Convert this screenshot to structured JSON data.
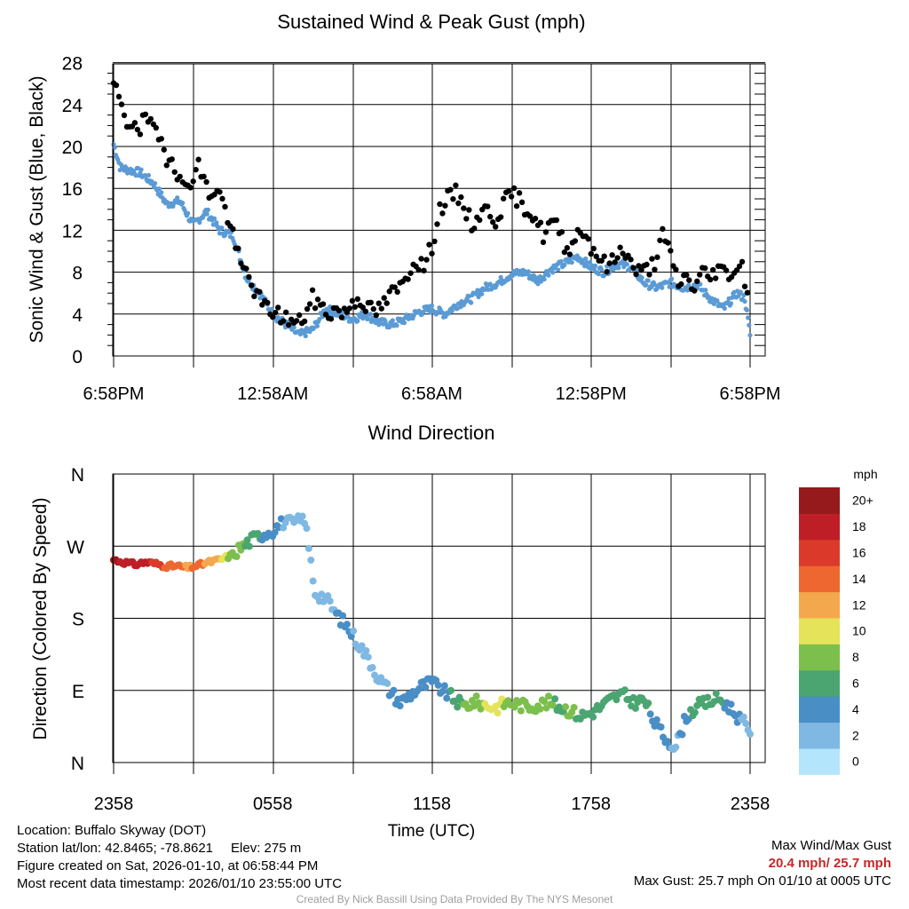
{
  "colors": {
    "wind": "#5b9bd5",
    "gust": "#000000",
    "scale": [
      "#b3e5fc",
      "#7fb8e3",
      "#4a8ec6",
      "#4aa571",
      "#7cbf4c",
      "#e4e35a",
      "#f4a84d",
      "#ef6730",
      "#db3a2b",
      "#be1f26",
      "#96191c"
    ]
  },
  "chart_data": [
    {
      "type": "scatter",
      "title": "Sustained Wind & Peak Gust (mph)",
      "ylabel": "Sonic Wind & Gust (Blue, Black)",
      "xlabel": "",
      "ylim": [
        0,
        29
      ],
      "yticks": [
        0,
        4,
        8,
        12,
        16,
        20,
        24,
        28
      ],
      "xlim_hours": [
        0,
        24
      ],
      "xticks_hours": [
        0,
        6,
        12,
        18,
        24
      ],
      "xtick_labels": [
        "6:58PM",
        "12:58AM",
        "6:58AM",
        "12:58PM",
        "6:58PM"
      ],
      "grid": true,
      "series": [
        {
          "name": "Sustained Wind",
          "color": "#5b9bd5",
          "x_hours": [
            0,
            0.25,
            0.5,
            1.0,
            1.5,
            2.0,
            2.5,
            3.0,
            3.5,
            4.0,
            4.5,
            5.0,
            5.5,
            6.0,
            6.5,
            7.0,
            7.5,
            8.0,
            8.5,
            9.0,
            9.5,
            10.0,
            10.5,
            11.0,
            11.5,
            12.0,
            12.5,
            13.0,
            13.5,
            14.0,
            14.5,
            15.0,
            15.5,
            16.0,
            16.5,
            17.0,
            17.5,
            18.0,
            18.5,
            19.0,
            19.5,
            20.0,
            20.5,
            21.0,
            21.5,
            22.0,
            22.5,
            23.0,
            23.5,
            23.8,
            24.0
          ],
          "values": [
            20.2,
            18.0,
            17.8,
            17.5,
            16.5,
            14.5,
            14.8,
            12.5,
            13.8,
            12.0,
            11.5,
            7.5,
            6.0,
            4.0,
            3.0,
            2.0,
            2.5,
            4.5,
            4.0,
            3.5,
            4.0,
            3.2,
            3.0,
            3.5,
            4.2,
            4.5,
            4.0,
            5.0,
            5.5,
            6.5,
            7.0,
            7.8,
            8.0,
            7.2,
            8.3,
            8.8,
            9.5,
            8.5,
            8.0,
            8.8,
            8.5,
            7.0,
            6.5,
            7.0,
            6.5,
            6.8,
            5.5,
            4.5,
            6.0,
            5.5,
            2.0
          ]
        },
        {
          "name": "Peak Gust",
          "color": "#000000",
          "x_hours": [
            0,
            0.1,
            0.2,
            0.4,
            0.6,
            0.8,
            1.0,
            1.2,
            1.4,
            1.6,
            1.8,
            2.0,
            2.2,
            2.4,
            2.6,
            2.8,
            3.0,
            3.2,
            3.4,
            3.6,
            3.8,
            4.0,
            4.2,
            4.4,
            4.6,
            4.8,
            5.0,
            5.2,
            5.4,
            5.6,
            5.8,
            6.0,
            6.3,
            6.6,
            6.9,
            7.2,
            7.5,
            7.8,
            8.1,
            8.4,
            8.7,
            9.0,
            9.3,
            9.6,
            9.9,
            10.2,
            10.5,
            10.8,
            11.1,
            11.4,
            11.7,
            12.0,
            12.3,
            12.6,
            12.9,
            13.2,
            13.5,
            13.8,
            14.1,
            14.4,
            14.7,
            15.0,
            15.3,
            15.6,
            15.9,
            16.2,
            16.5,
            16.8,
            17.1,
            17.4,
            17.7,
            18.0,
            18.3,
            18.6,
            18.9,
            19.2,
            19.5,
            19.8,
            20.1,
            20.4,
            20.7,
            21.0,
            21.3,
            21.6,
            21.9,
            22.2,
            22.5,
            22.8,
            23.1,
            23.4,
            23.7,
            24.0
          ],
          "values": [
            25.3,
            25.7,
            24.5,
            22.5,
            22.0,
            22.7,
            21.5,
            23.0,
            22.0,
            21.0,
            20.5,
            19.0,
            19.2,
            17.5,
            16.0,
            16.5,
            17.2,
            18.2,
            16.8,
            15.5,
            15.8,
            15.5,
            14.0,
            12.5,
            10.5,
            8.5,
            8.0,
            7.0,
            5.8,
            5.0,
            4.5,
            4.3,
            3.8,
            3.5,
            3.0,
            3.8,
            5.5,
            4.8,
            4.0,
            4.5,
            4.0,
            5.2,
            5.5,
            4.5,
            4.2,
            5.0,
            6.0,
            6.5,
            8.0,
            9.2,
            8.5,
            10.5,
            14.0,
            15.0,
            15.5,
            14.5,
            12.5,
            13.5,
            14.0,
            13.0,
            14.5,
            15.5,
            14.8,
            14.0,
            13.2,
            11.5,
            12.8,
            12.0,
            10.0,
            11.5,
            12.0,
            10.5,
            9.5,
            8.5,
            9.2,
            10.5,
            8.8,
            8.0,
            8.2,
            9.0,
            11.5,
            9.5,
            7.0,
            7.5,
            6.5,
            8.0,
            7.5,
            8.5,
            7.8,
            8.2,
            8.6,
            5.0
          ]
        }
      ]
    },
    {
      "type": "scatter",
      "title": "Wind Direction",
      "ylabel": "Direction (Colored By Speed)",
      "xlabel": "Time (UTC)",
      "ylim_degrees": [
        0,
        360
      ],
      "yticks_degrees": [
        0,
        90,
        180,
        270,
        360
      ],
      "ytick_labels": [
        "N",
        "E",
        "S",
        "W",
        "N"
      ],
      "xlim_hours": [
        0,
        24
      ],
      "xticks_hours": [
        0,
        6,
        12,
        18,
        24
      ],
      "xtick_labels": [
        "2358",
        "0558",
        "1158",
        "1758",
        "2358"
      ],
      "grid": true,
      "colorbar": {
        "title": "mph",
        "labels": [
          "0",
          "2",
          "4",
          "6",
          "8",
          "10",
          "12",
          "14",
          "16",
          "18",
          "20+"
        ]
      },
      "x_hours": [
        0,
        0.4,
        0.8,
        1.2,
        1.6,
        2.0,
        2.4,
        2.8,
        3.2,
        3.6,
        4.0,
        4.4,
        4.8,
        5.2,
        5.6,
        6.0,
        6.4,
        6.8,
        7.2,
        7.6,
        8.0,
        8.4,
        8.8,
        9.2,
        9.6,
        10.0,
        10.4,
        10.8,
        11.2,
        11.6,
        12.0,
        12.4,
        12.8,
        13.2,
        13.6,
        14.0,
        14.4,
        14.8,
        15.2,
        15.6,
        16.0,
        16.4,
        16.8,
        17.2,
        17.6,
        18.0,
        18.4,
        18.8,
        19.2,
        19.6,
        20.0,
        20.4,
        20.8,
        21.2,
        21.6,
        22.0,
        22.4,
        22.8,
        23.2,
        23.6,
        24.0
      ],
      "directions_deg": [
        253,
        250,
        247,
        250,
        248,
        245,
        245,
        243,
        246,
        250,
        253,
        258,
        268,
        278,
        285,
        290,
        300,
        298,
        305,
        212,
        205,
        185,
        170,
        150,
        130,
        105,
        90,
        75,
        85,
        95,
        100,
        90,
        80,
        70,
        76,
        72,
        68,
        75,
        73,
        70,
        72,
        75,
        70,
        65,
        58,
        62,
        70,
        80,
        85,
        75,
        78,
        50,
        30,
        20,
        58,
        70,
        75,
        80,
        70,
        55,
        40
      ],
      "speeds_mph": [
        20.2,
        18,
        17.8,
        17.5,
        16.5,
        14.5,
        14.8,
        12.5,
        13.8,
        12,
        11.5,
        8,
        7.5,
        6,
        5,
        4.5,
        3,
        2.5,
        1.5,
        1.5,
        2.5,
        3,
        3.5,
        2.5,
        2,
        2.5,
        3,
        3.5,
        3.5,
        4,
        4.5,
        4,
        5.5,
        7,
        8,
        9,
        9.8,
        8.5,
        8,
        8.8,
        8.5,
        7.5,
        6.5,
        7.5,
        6.5,
        6,
        6.5,
        7,
        6.5,
        5,
        5.5,
        4.5,
        3.5,
        2.5,
        4.5,
        6,
        6.5,
        5.5,
        4.5,
        3,
        2
      ]
    }
  ],
  "info": {
    "location": "Location: Buffalo Skyway (DOT)",
    "latlon": "Station lat/lon: 42.8465; -78.8621",
    "elev": "Elev: 275 m",
    "created": "Figure created on Sat, 2026-01-10, at 06:58:44 PM",
    "recent": "Most recent data timestamp: 2026/01/10 23:55:00 UTC",
    "max_title": "Max Wind/Max Gust",
    "max_values": "20.4 mph/ 25.7 mph",
    "max_gust_detail": "Max Gust: 25.7 mph On 01/10 at 0005 UTC",
    "credit": "Created By Nick Bassill Using Data Provided By The NYS Mesonet"
  }
}
